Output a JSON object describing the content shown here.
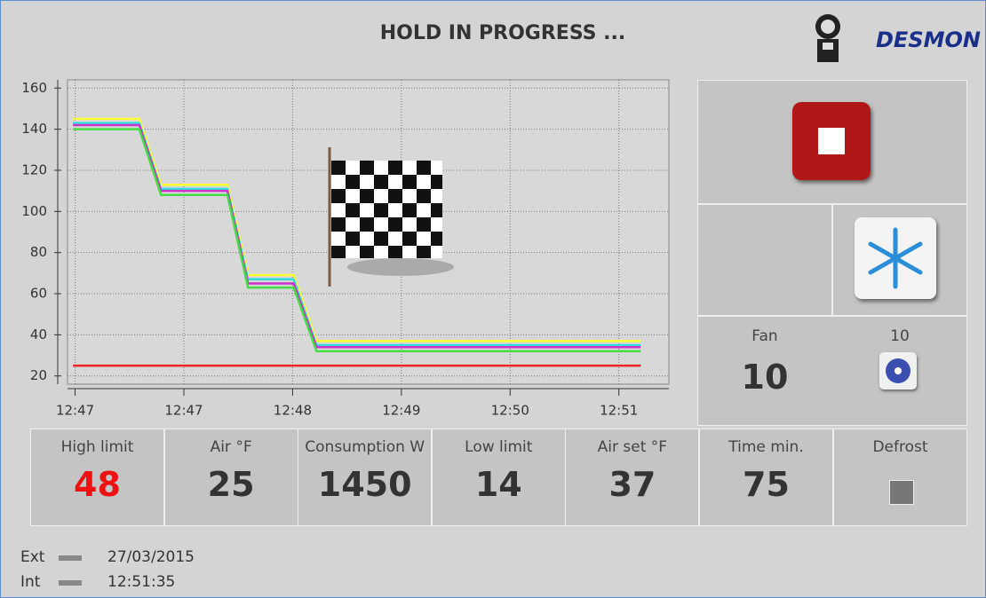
{
  "header": {
    "title": "HOLD IN PROGRESS ...",
    "brand": "DESMON"
  },
  "chart_data": {
    "type": "line",
    "x": [
      -0.02,
      0.59,
      0.79,
      1.4,
      1.59,
      2.01,
      2.22,
      5.2
    ],
    "series": [
      {
        "color": "#ffff33",
        "values": [
          145,
          145,
          113,
          113,
          69,
          69,
          37,
          37
        ]
      },
      {
        "color": "#33dddd",
        "values": [
          143,
          143,
          111,
          111,
          67,
          67,
          35,
          35
        ]
      },
      {
        "color": "#cc33cc",
        "values": [
          142,
          142,
          110,
          110,
          65,
          65,
          34,
          34
        ]
      },
      {
        "color": "#44dd44",
        "values": [
          140,
          140,
          108,
          108,
          63,
          63,
          32,
          32
        ]
      },
      {
        "color": "#ee2222",
        "values": [
          25,
          25,
          25,
          25,
          25,
          25,
          25,
          25
        ]
      }
    ],
    "xlim": [
      -0.07,
      5.46
    ],
    "xticks": [
      {
        "value": 0,
        "label": "12:47"
      },
      {
        "value": 1,
        "label": "12:47"
      },
      {
        "value": 2,
        "label": "12:48"
      },
      {
        "value": 3,
        "label": "12:49"
      },
      {
        "value": 4,
        "label": "12:50"
      },
      {
        "value": 5,
        "label": "12:51"
      }
    ],
    "ylim": [
      16,
      164
    ],
    "yticks": [
      20,
      40,
      60,
      80,
      100,
      120,
      140,
      160
    ],
    "grid": true
  },
  "fan": {
    "label": "Fan",
    "value": "10",
    "setting": "10"
  },
  "readouts": [
    {
      "label": "High limit",
      "value": "48",
      "color": "#ee1111"
    },
    {
      "label": "Air °F",
      "value": "25",
      "color": "#333333"
    },
    {
      "label": "Consumption W",
      "value": "1450",
      "color": "#333333"
    },
    {
      "label": "Low limit",
      "value": "14",
      "color": "#333333"
    },
    {
      "label": "Air set °F",
      "value": "37",
      "color": "#333333"
    },
    {
      "label": "Time min.",
      "value": "75",
      "color": "#333333"
    }
  ],
  "defrost": {
    "label": "Defrost"
  },
  "status": {
    "ext": "Ext",
    "int": "Int",
    "date": "27/03/2015",
    "time": "12:51:35"
  }
}
